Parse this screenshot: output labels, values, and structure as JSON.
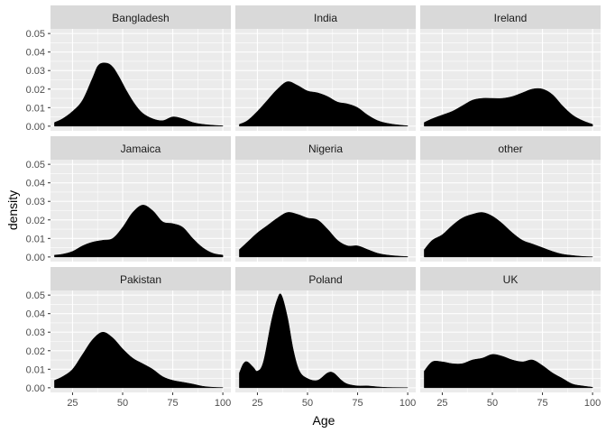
{
  "chart_data": {
    "type": "area",
    "subtype": "faceted density",
    "xlabel": "Age",
    "ylabel": "density",
    "xlim": [
      14,
      104
    ],
    "ylim": [
      -0.0025,
      0.0525
    ],
    "xticks": [
      25,
      50,
      75,
      100
    ],
    "yticks": [
      0.0,
      0.01,
      0.02,
      0.03,
      0.04,
      0.05
    ],
    "xtick_labels": [
      "25",
      "50",
      "75",
      "100"
    ],
    "ytick_labels": [
      "0.00",
      "0.01",
      "0.02",
      "0.03",
      "0.04",
      "0.05"
    ],
    "grid": true,
    "fill_color": "#000000",
    "panel_background": "#ebebeb",
    "strip_background": "#d9d9d9",
    "facets": [
      {
        "name": "Bangladesh",
        "x": [
          16,
          20,
          25,
          30,
          35,
          38,
          42,
          45,
          48,
          52,
          56,
          60,
          65,
          70,
          75,
          80,
          85,
          90,
          95,
          100
        ],
        "y": [
          0.002,
          0.004,
          0.008,
          0.014,
          0.026,
          0.033,
          0.034,
          0.032,
          0.027,
          0.019,
          0.012,
          0.007,
          0.004,
          0.003,
          0.005,
          0.004,
          0.002,
          0.001,
          0.0005,
          0.0002
        ]
      },
      {
        "name": "India",
        "x": [
          16,
          20,
          25,
          30,
          35,
          40,
          45,
          50,
          55,
          60,
          65,
          70,
          75,
          80,
          85,
          90,
          95,
          100
        ],
        "y": [
          0.001,
          0.003,
          0.008,
          0.014,
          0.02,
          0.024,
          0.022,
          0.019,
          0.018,
          0.016,
          0.013,
          0.012,
          0.01,
          0.006,
          0.003,
          0.0015,
          0.0007,
          0.0002
        ]
      },
      {
        "name": "Ireland",
        "x": [
          16,
          20,
          25,
          30,
          35,
          40,
          45,
          50,
          55,
          60,
          65,
          70,
          75,
          80,
          85,
          90,
          95,
          100
        ],
        "y": [
          0.002,
          0.004,
          0.006,
          0.008,
          0.011,
          0.014,
          0.015,
          0.015,
          0.015,
          0.016,
          0.018,
          0.02,
          0.02,
          0.017,
          0.011,
          0.006,
          0.003,
          0.001
        ]
      },
      {
        "name": "Jamaica",
        "x": [
          16,
          20,
          25,
          30,
          35,
          40,
          45,
          50,
          55,
          60,
          65,
          70,
          75,
          80,
          85,
          90,
          95,
          100
        ],
        "y": [
          0.001,
          0.0015,
          0.003,
          0.006,
          0.008,
          0.009,
          0.01,
          0.016,
          0.024,
          0.028,
          0.025,
          0.019,
          0.018,
          0.016,
          0.01,
          0.005,
          0.002,
          0.001
        ]
      },
      {
        "name": "Nigeria",
        "x": [
          16,
          20,
          25,
          30,
          35,
          40,
          45,
          50,
          55,
          60,
          65,
          70,
          75,
          80,
          85,
          90,
          95,
          100
        ],
        "y": [
          0.004,
          0.008,
          0.013,
          0.017,
          0.021,
          0.024,
          0.023,
          0.021,
          0.02,
          0.015,
          0.009,
          0.006,
          0.006,
          0.004,
          0.002,
          0.001,
          0.0005,
          0.0002
        ]
      },
      {
        "name": "other",
        "x": [
          16,
          20,
          25,
          30,
          35,
          40,
          45,
          50,
          55,
          60,
          65,
          70,
          75,
          80,
          85,
          90,
          95,
          100
        ],
        "y": [
          0.004,
          0.009,
          0.012,
          0.017,
          0.021,
          0.023,
          0.024,
          0.022,
          0.018,
          0.013,
          0.009,
          0.007,
          0.005,
          0.003,
          0.0015,
          0.0008,
          0.0003,
          0.0001
        ]
      },
      {
        "name": "Pakistan",
        "x": [
          16,
          20,
          25,
          30,
          35,
          40,
          45,
          50,
          55,
          60,
          65,
          70,
          75,
          80,
          85,
          90,
          95,
          100
        ],
        "y": [
          0.004,
          0.006,
          0.01,
          0.018,
          0.026,
          0.03,
          0.027,
          0.021,
          0.016,
          0.013,
          0.01,
          0.006,
          0.004,
          0.003,
          0.002,
          0.0008,
          0.0003,
          0.0001
        ]
      },
      {
        "name": "Poland",
        "x": [
          16,
          18,
          20,
          23,
          25,
          28,
          32,
          35,
          37,
          40,
          43,
          46,
          50,
          55,
          60,
          63,
          67,
          70,
          75,
          80,
          85,
          90,
          95,
          100
        ],
        "y": [
          0.008,
          0.013,
          0.014,
          0.011,
          0.009,
          0.014,
          0.036,
          0.048,
          0.05,
          0.038,
          0.02,
          0.009,
          0.005,
          0.004,
          0.008,
          0.008,
          0.004,
          0.002,
          0.001,
          0.001,
          0.0005,
          0.0002,
          0.0001,
          5e-05
        ]
      },
      {
        "name": "UK",
        "x": [
          16,
          20,
          25,
          30,
          35,
          40,
          45,
          50,
          55,
          60,
          65,
          70,
          75,
          80,
          85,
          90,
          95,
          100
        ],
        "y": [
          0.009,
          0.014,
          0.014,
          0.013,
          0.013,
          0.015,
          0.016,
          0.018,
          0.017,
          0.015,
          0.014,
          0.015,
          0.012,
          0.008,
          0.005,
          0.002,
          0.001,
          0.0003
        ]
      }
    ]
  }
}
